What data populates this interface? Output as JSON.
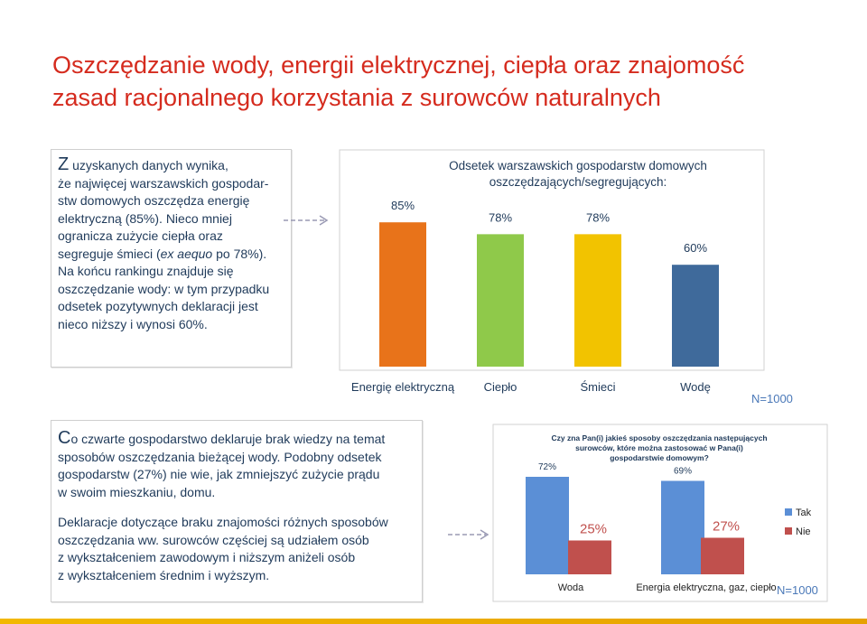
{
  "title": {
    "line1": "Oszczędzanie wody, energii elektrycznej, ciepła oraz znajomość",
    "line2": "zasad racjonalnego korzystania z surowców naturalnych"
  },
  "text_box_1": {
    "initial": "Z",
    "l1": " uzyskanych danych wynika,",
    "l2": "że najwięcej warszawskich gospodar-",
    "l3": "stw domowych oszczędza energię",
    "l4": "elektryczną (85%). Nieco mniej",
    "l5": "ogranicza zużycie ciepła oraz",
    "l6a": "segreguje śmieci (",
    "l6b": "ex aequo",
    "l6c": " po 78%).",
    "l7": "Na końcu rankingu znajduje się",
    "l8": "oszczędzanie wody: w tym przypadku",
    "l9": "odsetek pozytywnych deklaracji jest",
    "l10": "nieco niższy i wynosi 60%."
  },
  "text_box_2": {
    "initial": "C",
    "l1": "o czwarte gospodarstwo deklaruje brak wiedzy na temat",
    "l2": "sposobów oszczędzania bieżącej wody. Podobny odsetek",
    "l3": "gospodarstw (27%) nie wie, jak zmniejszyć zużycie prądu",
    "l4": "w swoim mieszkaniu, domu.",
    "l5": "Deklaracje dotyczące braku znajomości różnych sposobów",
    "l6": "oszczędzania ww. surowców częściej są udziałem osób",
    "l7": "z wykształceniem zawodowym i niższym aniżeli osób",
    "l8": "z wykształceniem średnim i wyższym."
  },
  "arrow_glyph": "- - - -",
  "colors": {
    "title_red": "#d52b1e",
    "text_blue": "#1f3a5a",
    "bar_orange": "#e8731a",
    "bar_green": "#8fc94a",
    "bar_yellow": "#f2c300",
    "bar_blue": "#3f6a9b",
    "tak_blue": "#5b8fd6",
    "nie_red": "#c0504d"
  },
  "chart_data": [
    {
      "type": "bar",
      "title_line1": "Odsetek warszawskich gospodarstw domowych",
      "title_line2": "oszczędzających/segregujących:",
      "categories": [
        "Energię elektryczną",
        "Ciepło",
        "Śmieci",
        "Wodę"
      ],
      "values": [
        85,
        78,
        78,
        60
      ],
      "value_labels": [
        "85%",
        "78%",
        "78%",
        "60%"
      ],
      "colors": [
        "#e8731a",
        "#8fc94a",
        "#f2c300",
        "#3f6a9b"
      ],
      "ylim": [
        0,
        100
      ],
      "note": "N=1000"
    },
    {
      "type": "bar",
      "title_line1": "Czy zna Pan(i) jakieś sposoby oszczędzania następujących",
      "title_line2": "surowców, które można zastosować w Pana(i)",
      "title_line3": "gospodarstwie domowym?",
      "categories": [
        "Woda",
        "Energia elektryczna, gaz, ciepło"
      ],
      "series": [
        {
          "name": "Tak",
          "values": [
            72,
            69
          ],
          "labels": [
            "72%",
            "69%"
          ],
          "color": "#5b8fd6"
        },
        {
          "name": "Nie",
          "values": [
            25,
            27
          ],
          "labels": [
            "25%",
            "27%"
          ],
          "color": "#c0504d"
        }
      ],
      "ylim": [
        0,
        100
      ],
      "legend": "right",
      "note": "N=1000"
    }
  ]
}
